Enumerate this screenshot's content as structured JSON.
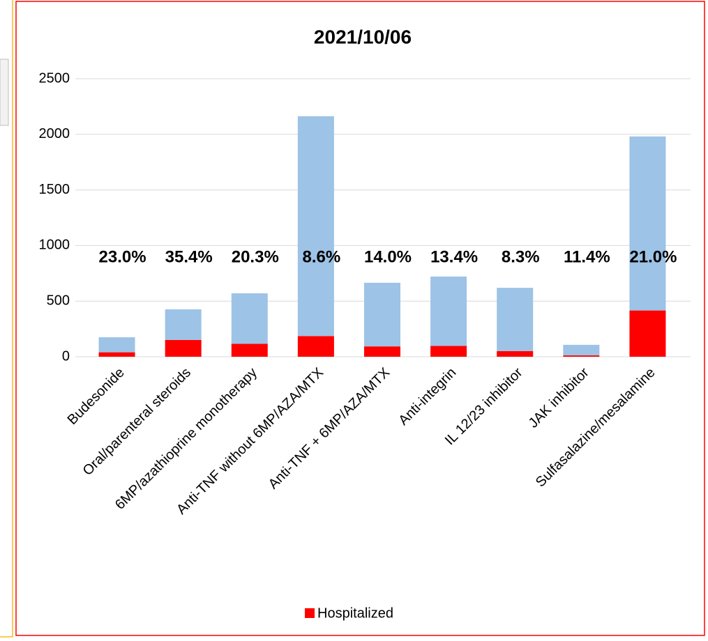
{
  "chart_data": {
    "type": "stacked_bar",
    "title": "2021/10/06",
    "categories": [
      "Budesonide",
      "Oral/parenteral steroids",
      "6MP/azathioprine monotherapy",
      "Anti-TNF without 6MP/AZA/MTX",
      "Anti-TNF + 6MP/AZA/MTX",
      "Anti-integrin",
      "IL 12/23 inhibitor",
      "JAK inhibitor",
      "Sulfasalazine/mesalamine"
    ],
    "series": [
      {
        "name": "Hospitalized",
        "color": "#ff0000",
        "values": [
          40,
          151,
          116,
          186,
          93,
          97,
          51,
          12,
          416
        ]
      },
      {
        "color": "#9dc3e6",
        "values": [
          135,
          275,
          454,
          1977,
          572,
          624,
          569,
          95,
          1565
        ]
      }
    ],
    "annotations": [
      "23.0%",
      "35.4%",
      "20.3%",
      "8.6%",
      "14.0%",
      "13.4%",
      "8.3%",
      "11.4%",
      "21.0%"
    ],
    "annotation_color": "#ff0000",
    "ylim": [
      0,
      2500
    ],
    "yticks": [
      0,
      500,
      1000,
      1500,
      2000,
      2500
    ],
    "grid": true,
    "legend": "bottom"
  }
}
